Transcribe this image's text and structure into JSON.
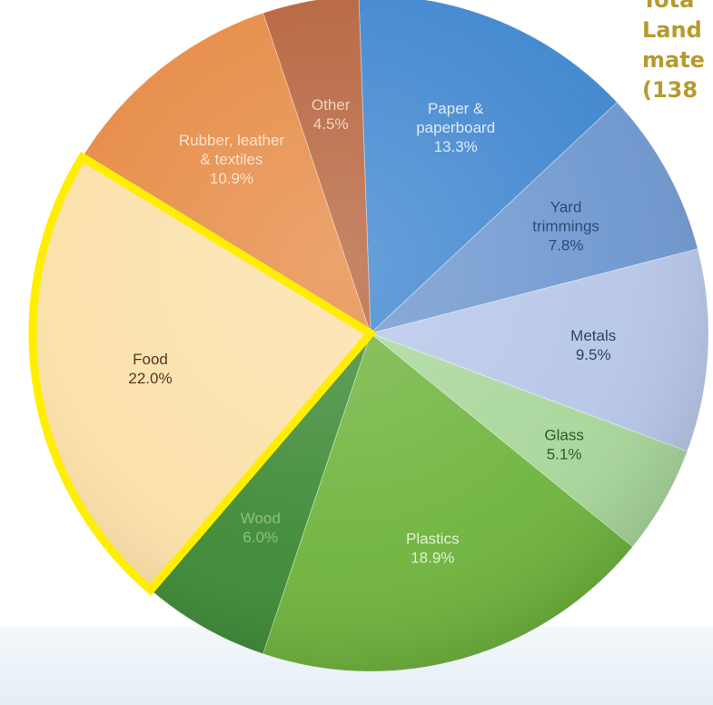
{
  "side_title": {
    "lines": [
      "Tota",
      "Land",
      "mate",
      "(138"
    ]
  },
  "chart_data": {
    "type": "pie",
    "start_angle_deg": 92,
    "highlighted_slice": "Food",
    "highlight_color": "#ffee00",
    "slices": [
      {
        "label_lines": [
          "Paper &",
          "paperboard"
        ],
        "pct_label": "13.3%",
        "value": 13.3,
        "color": "#3f86cf",
        "label_color": "#dfeaf5"
      },
      {
        "label_lines": [
          "Yard",
          "trimmings"
        ],
        "pct_label": "7.8%",
        "value": 7.8,
        "color": "#6e97cf",
        "label_color": "#2c4a73"
      },
      {
        "label_lines": [
          "Metals"
        ],
        "pct_label": "9.5%",
        "value": 9.5,
        "color": "#b7c6e8",
        "label_color": "#2f4566"
      },
      {
        "label_lines": [
          "Glass"
        ],
        "pct_label": "5.1%",
        "value": 5.1,
        "color": "#a8d69a",
        "label_color": "#2f5a2a"
      },
      {
        "label_lines": [
          "Plastics"
        ],
        "pct_label": "18.9%",
        "value": 18.9,
        "color": "#6fb43d",
        "label_color": "#e4f2d7"
      },
      {
        "label_lines": [
          "Wood"
        ],
        "pct_label": "6.0%",
        "value": 6.0,
        "color": "#3d8a36",
        "label_color": "#8fbf82"
      },
      {
        "label_lines": [
          "Food"
        ],
        "pct_label": "22.0%",
        "value": 22.0,
        "color": "#fbe0a8",
        "label_color": "#4a3b22"
      },
      {
        "label_lines": [
          "Rubber, leather",
          "& textiles"
        ],
        "pct_label": "10.9%",
        "value": 10.9,
        "color": "#e68a44",
        "label_color": "#fbe3cd"
      },
      {
        "label_lines": [
          "Other"
        ],
        "pct_label": "4.5%",
        "value": 4.5,
        "color": "#b6633c",
        "label_color": "#f2d2be"
      }
    ]
  }
}
